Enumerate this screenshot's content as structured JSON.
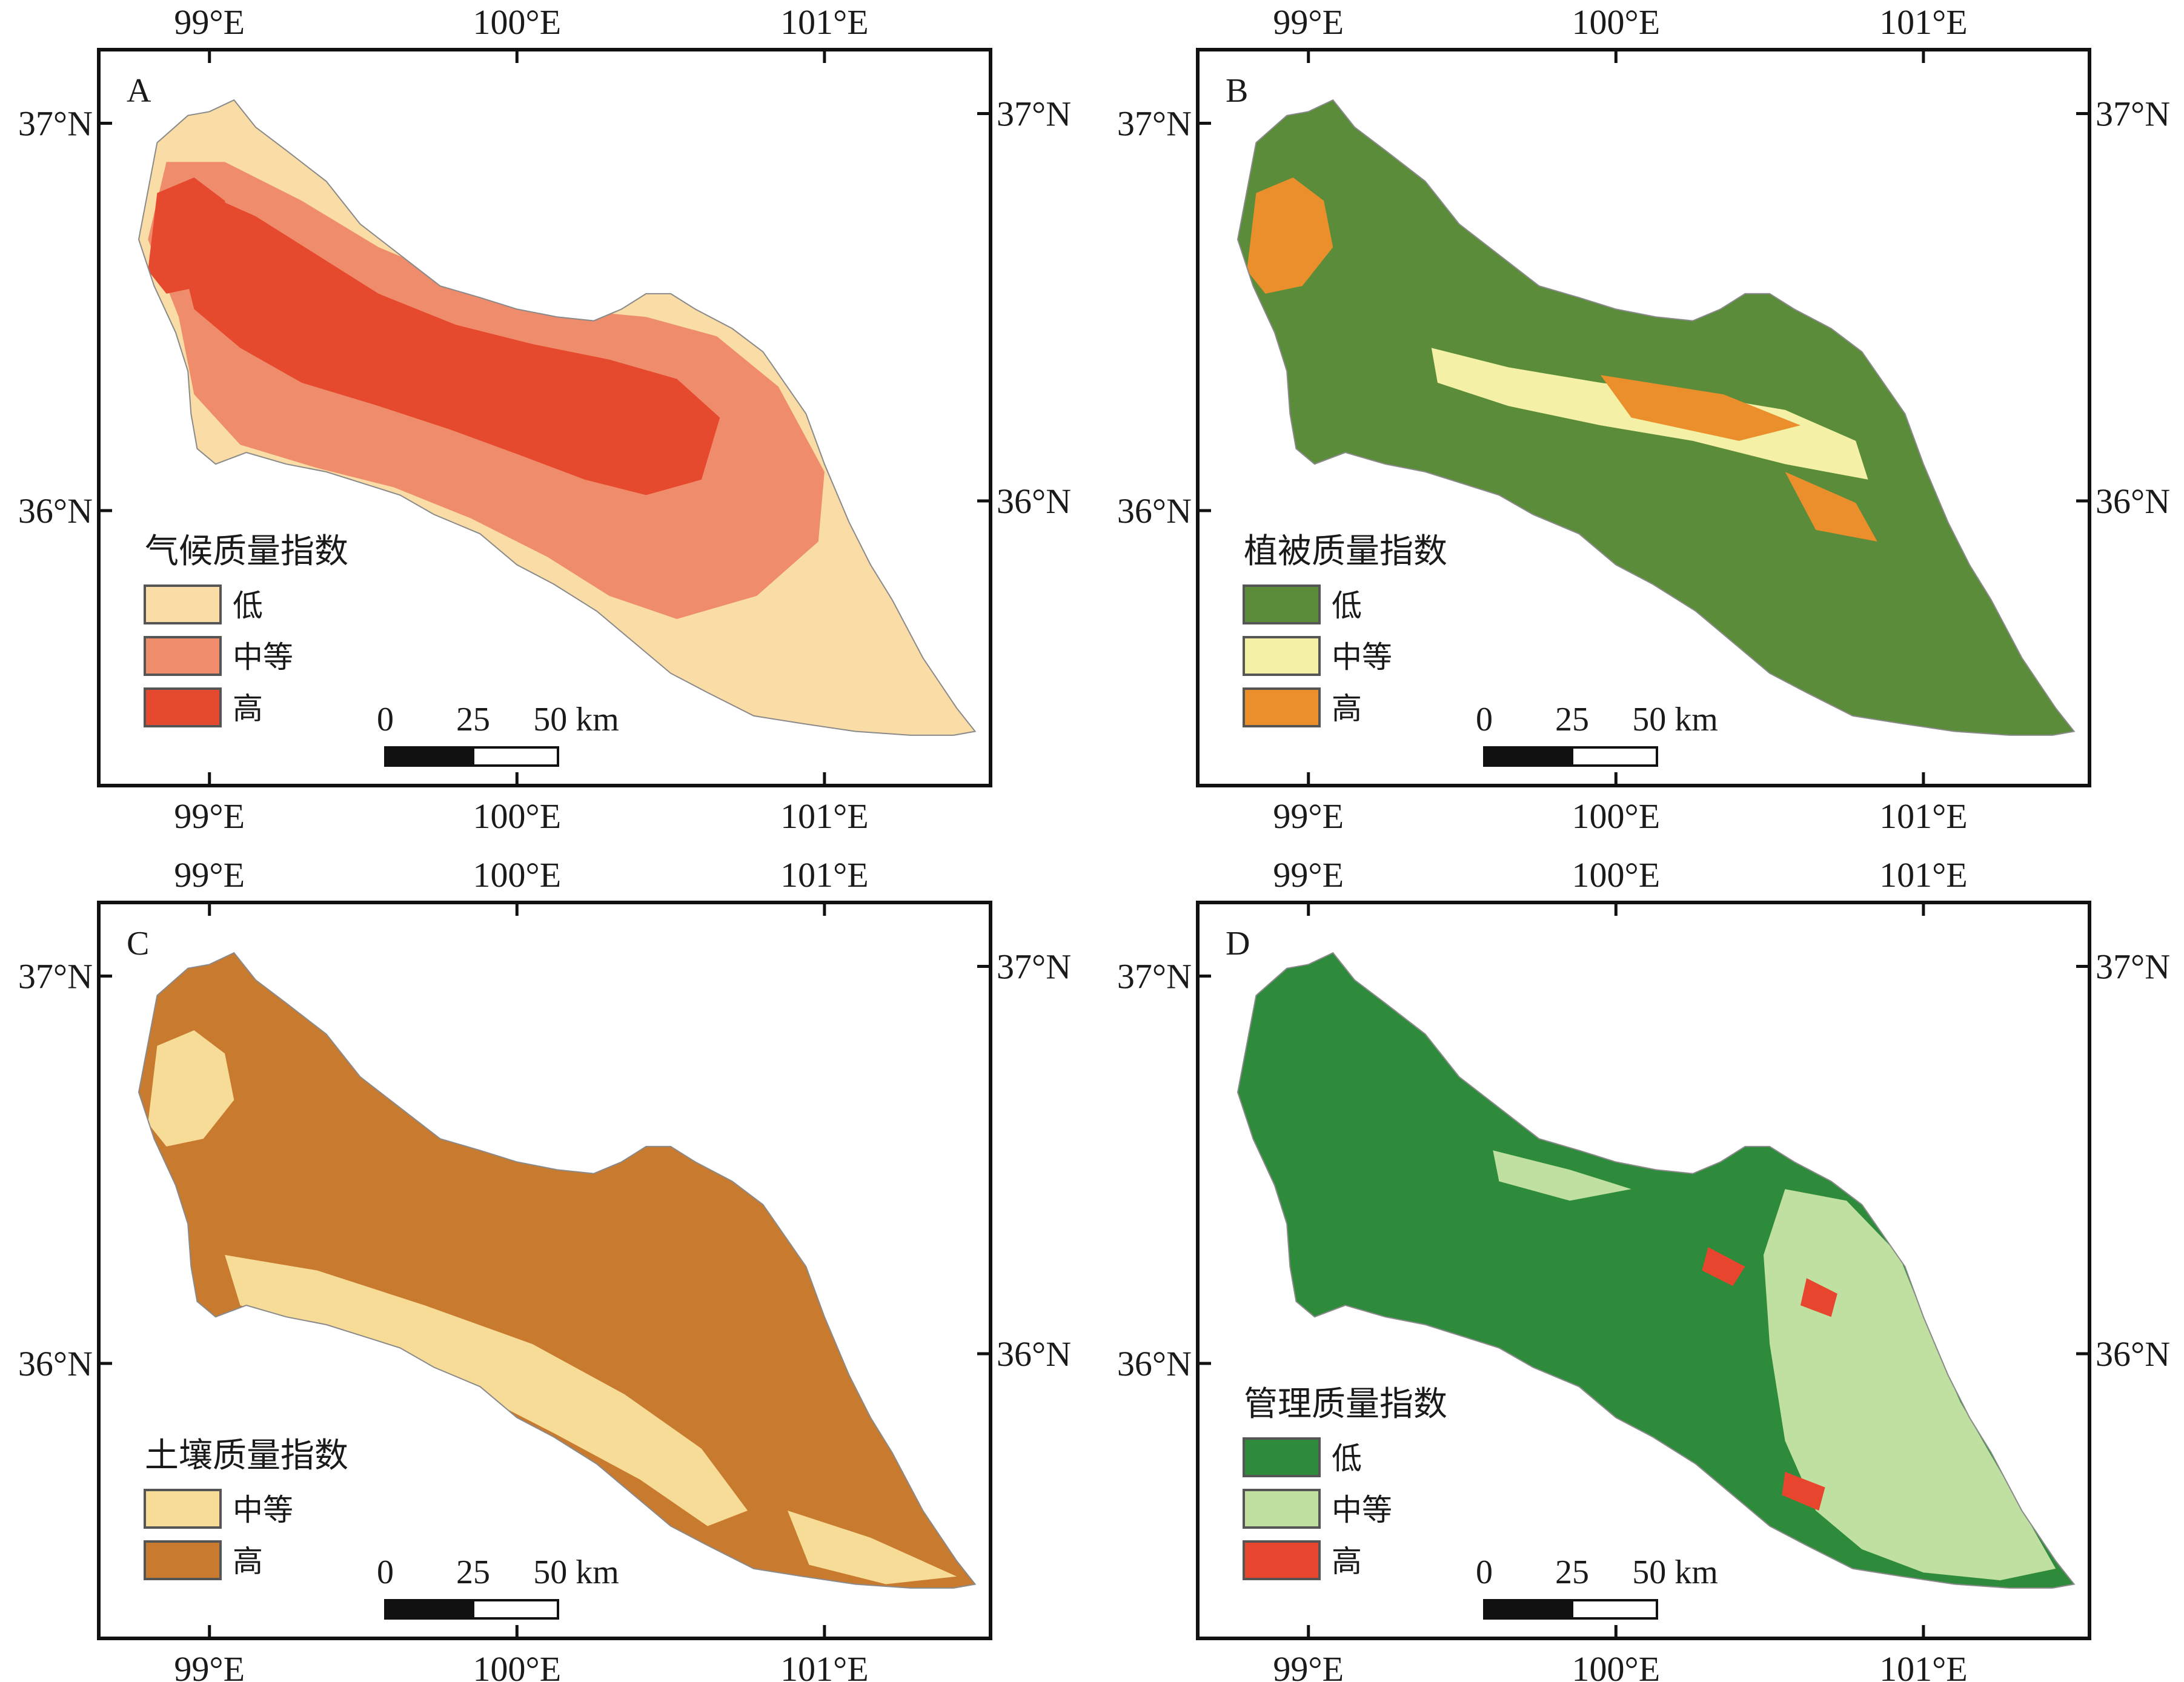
{
  "panels": [
    {
      "tag": "A",
      "legend_title": "气候质量指数",
      "classes": [
        {
          "label": "低",
          "color": "#f9dca6"
        },
        {
          "label": "中等",
          "color": "#ef8c6c"
        },
        {
          "label": "高",
          "color": "#e64a2e"
        }
      ]
    },
    {
      "tag": "B",
      "legend_title": "植被质量指数",
      "classes": [
        {
          "label": "低",
          "color": "#5a8c3a"
        },
        {
          "label": "中等",
          "color": "#f4f1a6"
        },
        {
          "label": "高",
          "color": "#ea8f2c"
        }
      ]
    },
    {
      "tag": "C",
      "legend_title": "土壤质量指数",
      "classes": [
        {
          "label": "中等",
          "color": "#f7dc98"
        },
        {
          "label": "高",
          "color": "#c87a2e"
        }
      ]
    },
    {
      "tag": "D",
      "legend_title": "管理质量指数",
      "classes": [
        {
          "label": "低",
          "color": "#2e8b3c"
        },
        {
          "label": "中等",
          "color": "#bfe0a0"
        },
        {
          "label": "高",
          "color": "#e8452e"
        }
      ]
    }
  ],
  "axes": {
    "lon_labels": [
      "99°E",
      "100°E",
      "101°E"
    ],
    "lat_labels": [
      "37°N",
      "36°N"
    ]
  },
  "scale_bar": {
    "labels": [
      "0",
      "25",
      "50 km"
    ]
  }
}
